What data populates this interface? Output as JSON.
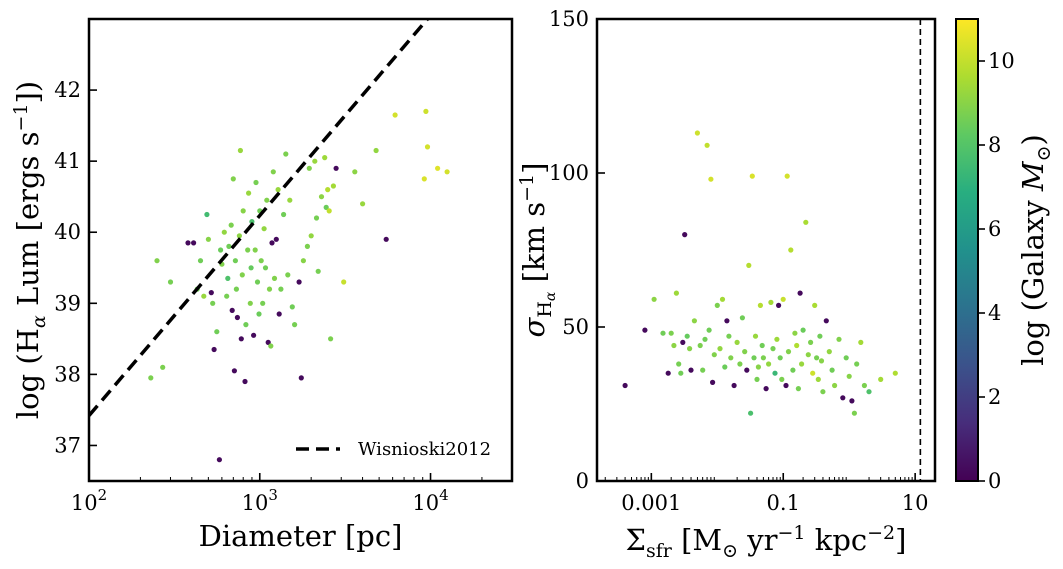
{
  "chart_data": [
    {
      "type": "scatter",
      "panel": "left",
      "xlabel": "Diameter [pc]",
      "ylabel": "log (Hα Lum [ergs s⁻¹])",
      "xscale": "log",
      "xlim": [
        100,
        30000
      ],
      "ylim": [
        36.5,
        43.0
      ],
      "xticks": [
        100,
        1000,
        10000
      ],
      "xtick_labels": [
        "10²",
        "10³",
        "10⁴"
      ],
      "yticks": [
        37,
        38,
        39,
        40,
        41,
        42
      ],
      "ytick_labels": [
        "37",
        "38",
        "39",
        "40",
        "41",
        "42"
      ],
      "color_by": "log (Galaxy M⊙)",
      "line": {
        "name": "Wisnioski2012",
        "style": "dashed",
        "x": [
          100,
          9600
        ],
        "y": [
          37.42,
          43.0
        ]
      },
      "legend": {
        "label": "Wisnioski2012",
        "position": "lower right"
      },
      "points": [
        [
          230,
          37.95,
          8.8
        ],
        [
          250,
          39.6,
          8.9
        ],
        [
          270,
          38.1,
          8.8
        ],
        [
          300,
          39.3,
          8.7
        ],
        [
          380,
          39.85,
          0.3
        ],
        [
          410,
          39.85,
          0.3
        ],
        [
          430,
          39.2,
          8.6
        ],
        [
          450,
          39.6,
          8.6
        ],
        [
          470,
          39.1,
          9.3
        ],
        [
          490,
          40.25,
          7.6
        ],
        [
          500,
          39.9,
          9.0
        ],
        [
          520,
          39.15,
          0.3
        ],
        [
          530,
          39.0,
          8.7
        ],
        [
          540,
          38.35,
          0.3
        ],
        [
          560,
          38.6,
          8.6
        ],
        [
          580,
          36.8,
          0.3
        ],
        [
          590,
          39.75,
          8.5
        ],
        [
          600,
          39.55,
          8.9
        ],
        [
          620,
          40.0,
          9.2
        ],
        [
          640,
          39.1,
          8.7
        ],
        [
          650,
          39.35,
          7.9
        ],
        [
          660,
          39.8,
          8.6
        ],
        [
          680,
          40.1,
          8.8
        ],
        [
          690,
          38.9,
          0.3
        ],
        [
          700,
          40.75,
          8.9
        ],
        [
          710,
          38.05,
          0.3
        ],
        [
          720,
          39.6,
          8.6
        ],
        [
          730,
          39.2,
          8.7
        ],
        [
          740,
          38.8,
          0.3
        ],
        [
          760,
          39.95,
          9.1
        ],
        [
          770,
          41.15,
          9.3
        ],
        [
          780,
          38.5,
          0.3
        ],
        [
          790,
          39.4,
          8.9
        ],
        [
          800,
          40.3,
          9.0
        ],
        [
          820,
          37.9,
          0.3
        ],
        [
          830,
          38.7,
          8.6
        ],
        [
          850,
          39.75,
          8.8
        ],
        [
          860,
          40.55,
          9.3
        ],
        [
          880,
          39.0,
          8.9
        ],
        [
          890,
          39.5,
          8.4
        ],
        [
          900,
          40.15,
          7.8
        ],
        [
          920,
          38.55,
          0.3
        ],
        [
          940,
          39.75,
          8.9
        ],
        [
          950,
          40.7,
          8.7
        ],
        [
          970,
          39.3,
          8.6
        ],
        [
          990,
          38.85,
          8.5
        ],
        [
          1000,
          40.3,
          8.6
        ],
        [
          1020,
          39.6,
          8.8
        ],
        [
          1040,
          39.0,
          8.7
        ],
        [
          1060,
          40.05,
          9.2
        ],
        [
          1080,
          39.5,
          8.6
        ],
        [
          1100,
          40.45,
          8.9
        ],
        [
          1120,
          38.45,
          0.3
        ],
        [
          1140,
          39.2,
          8.9
        ],
        [
          1160,
          38.4,
          8.9
        ],
        [
          1180,
          39.85,
          0.3
        ],
        [
          1200,
          40.85,
          8.9
        ],
        [
          1220,
          39.35,
          8.9
        ],
        [
          1250,
          39.9,
          0.3
        ],
        [
          1280,
          40.6,
          9.3
        ],
        [
          1300,
          38.85,
          0.3
        ],
        [
          1330,
          39.2,
          8.7
        ],
        [
          1380,
          40.25,
          8.6
        ],
        [
          1420,
          41.1,
          8.8
        ],
        [
          1460,
          39.4,
          8.8
        ],
        [
          1500,
          40.45,
          9.3
        ],
        [
          1550,
          38.95,
          8.6
        ],
        [
          1600,
          38.7,
          8.7
        ],
        [
          1700,
          39.3,
          0.3
        ],
        [
          1750,
          37.95,
          0.3
        ],
        [
          1800,
          39.6,
          9.0
        ],
        [
          1900,
          39.8,
          8.8
        ],
        [
          1950,
          40.9,
          8.9
        ],
        [
          2000,
          39.95,
          9.2
        ],
        [
          2100,
          41.0,
          9.3
        ],
        [
          2150,
          40.2,
          8.7
        ],
        [
          2200,
          39.45,
          8.7
        ],
        [
          2300,
          40.5,
          9.1
        ],
        [
          2400,
          41.05,
          9.4
        ],
        [
          2450,
          40.35,
          8.5
        ],
        [
          2500,
          40.6,
          9.8
        ],
        [
          2550,
          40.3,
          10.0
        ],
        [
          2600,
          38.5,
          8.8
        ],
        [
          2700,
          40.65,
          9.5
        ],
        [
          2800,
          40.9,
          0.3
        ],
        [
          3100,
          39.3,
          10.1
        ],
        [
          3600,
          40.85,
          9.1
        ],
        [
          4000,
          40.4,
          9.3
        ],
        [
          4800,
          41.15,
          9.2
        ],
        [
          5500,
          39.9,
          0.3
        ],
        [
          6200,
          41.65,
          10.3
        ],
        [
          9200,
          40.75,
          10.4
        ],
        [
          9400,
          41.7,
          10.2
        ],
        [
          9600,
          41.2,
          10.3
        ],
        [
          11000,
          40.9,
          10.5
        ],
        [
          12500,
          40.85,
          10.3
        ]
      ]
    },
    {
      "type": "scatter",
      "panel": "right",
      "xlabel": "Σsfr [M⊙ yr⁻¹ kpc⁻²]",
      "ylabel": "σHα [km s⁻¹]",
      "xscale": "log",
      "xlim": [
        0.00015,
        20
      ],
      "ylim": [
        0,
        150
      ],
      "xticks": [
        0.001,
        0.1,
        10
      ],
      "xtick_labels": [
        "0.001",
        "0.1",
        "10"
      ],
      "yticks": [
        0,
        50,
        100,
        150
      ],
      "ytick_labels": [
        "0",
        "50",
        "100",
        "150"
      ],
      "color_by": "log (Galaxy M⊙)",
      "vline": {
        "x": 12,
        "style": "dashed"
      },
      "points": [
        [
          0.0004,
          31,
          0.3
        ],
        [
          0.0008,
          49,
          0.3
        ],
        [
          0.0011,
          59,
          9.1
        ],
        [
          0.0015,
          48,
          8.6
        ],
        [
          0.0018,
          35,
          0.3
        ],
        [
          0.002,
          48,
          8.8
        ],
        [
          0.0022,
          44,
          9.1
        ],
        [
          0.0024,
          61,
          9.4
        ],
        [
          0.0026,
          38,
          8.7
        ],
        [
          0.0028,
          35,
          8.6
        ],
        [
          0.003,
          45,
          0.3
        ],
        [
          0.0032,
          80,
          0.3
        ],
        [
          0.0035,
          47,
          8.4
        ],
        [
          0.0038,
          43,
          9.0
        ],
        [
          0.004,
          36,
          0.3
        ],
        [
          0.0045,
          52,
          9.1
        ],
        [
          0.005,
          113,
          10.2
        ],
        [
          0.0055,
          44,
          8.8
        ],
        [
          0.006,
          36,
          8.7
        ],
        [
          0.0065,
          46,
          8.6
        ],
        [
          0.007,
          109,
          10.0
        ],
        [
          0.0075,
          49,
          8.6
        ],
        [
          0.008,
          98,
          10.3
        ],
        [
          0.0085,
          32,
          0.3
        ],
        [
          0.009,
          41,
          8.9
        ],
        [
          0.01,
          57,
          8.8
        ],
        [
          0.011,
          43,
          9.2
        ],
        [
          0.012,
          59,
          9.5
        ],
        [
          0.013,
          37,
          8.5
        ],
        [
          0.014,
          52,
          0.3
        ],
        [
          0.015,
          47,
          8.7
        ],
        [
          0.016,
          40,
          8.9
        ],
        [
          0.018,
          31,
          0.3
        ],
        [
          0.02,
          45,
          9.3
        ],
        [
          0.022,
          38,
          8.8
        ],
        [
          0.024,
          53,
          8.6
        ],
        [
          0.026,
          42,
          8.9
        ],
        [
          0.028,
          36,
          0.3
        ],
        [
          0.03,
          70,
          9.8
        ],
        [
          0.032,
          22,
          7.8
        ],
        [
          0.034,
          99,
          10.4
        ],
        [
          0.036,
          40,
          8.6
        ],
        [
          0.038,
          47,
          9.3
        ],
        [
          0.04,
          33,
          8.7
        ],
        [
          0.042,
          37,
          9.0
        ],
        [
          0.045,
          57,
          9.8
        ],
        [
          0.048,
          44,
          8.6
        ],
        [
          0.05,
          40,
          8.8
        ],
        [
          0.055,
          30,
          0.3
        ],
        [
          0.06,
          38,
          9.2
        ],
        [
          0.065,
          58,
          9.5
        ],
        [
          0.07,
          43,
          8.7
        ],
        [
          0.075,
          35,
          7.4
        ],
        [
          0.08,
          46,
          9.4
        ],
        [
          0.085,
          57,
          0.3
        ],
        [
          0.09,
          40,
          8.6
        ],
        [
          0.095,
          33,
          8.8
        ],
        [
          0.1,
          59,
          10.1
        ],
        [
          0.11,
          31,
          0.3
        ],
        [
          0.115,
          99,
          10.3
        ],
        [
          0.12,
          42,
          8.9
        ],
        [
          0.13,
          75,
          9.8
        ],
        [
          0.14,
          36,
          8.6
        ],
        [
          0.15,
          48,
          9.1
        ],
        [
          0.16,
          44,
          9.7
        ],
        [
          0.17,
          30,
          8.7
        ],
        [
          0.18,
          61,
          0.3
        ],
        [
          0.19,
          38,
          9.3
        ],
        [
          0.2,
          49,
          8.5
        ],
        [
          0.22,
          84,
          9.6
        ],
        [
          0.24,
          41,
          9.1
        ],
        [
          0.26,
          45,
          8.8
        ],
        [
          0.28,
          35,
          10.2
        ],
        [
          0.3,
          57,
          9.6
        ],
        [
          0.32,
          40,
          8.7
        ],
        [
          0.34,
          33,
          9.4
        ],
        [
          0.36,
          47,
          8.6
        ],
        [
          0.38,
          39,
          9.0
        ],
        [
          0.4,
          29,
          8.8
        ],
        [
          0.45,
          52,
          0.3
        ],
        [
          0.5,
          42,
          9.2
        ],
        [
          0.55,
          36,
          8.6
        ],
        [
          0.6,
          31,
          9.1
        ],
        [
          0.7,
          46,
          8.9
        ],
        [
          0.8,
          27,
          0.3
        ],
        [
          0.9,
          40,
          8.6
        ],
        [
          1.0,
          34,
          9.0
        ],
        [
          1.1,
          26,
          0.3
        ],
        [
          1.2,
          22,
          8.8
        ],
        [
          1.3,
          38,
          8.7
        ],
        [
          1.5,
          45,
          9.5
        ],
        [
          1.7,
          31,
          8.8
        ],
        [
          2.0,
          29,
          7.9
        ],
        [
          3.0,
          33,
          9.5
        ],
        [
          5.0,
          35,
          9.7
        ]
      ]
    }
  ],
  "colorbar": {
    "label": "log (Galaxy M⊙)",
    "range": [
      0,
      11
    ],
    "ticks": [
      "0",
      "2",
      "4",
      "6",
      "8",
      "10"
    ],
    "colormap": "viridis"
  }
}
